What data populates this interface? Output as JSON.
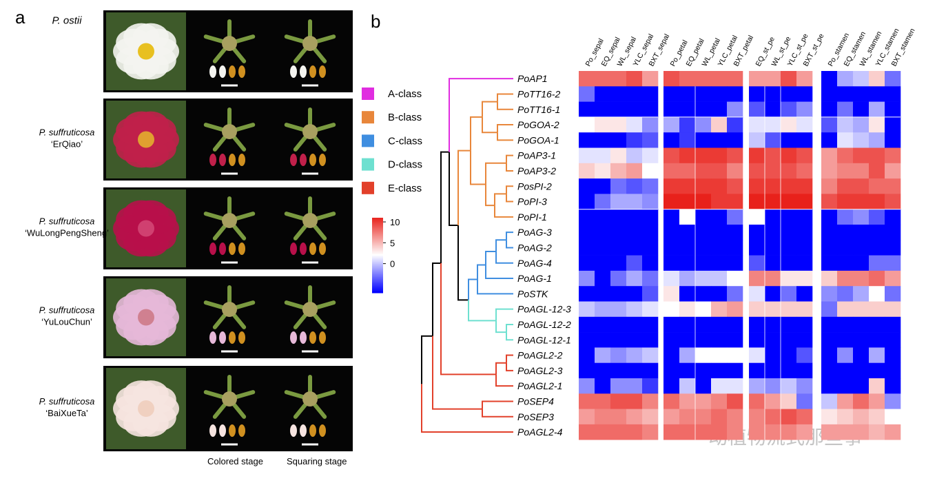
{
  "panel_a": {
    "label": "a",
    "rows": [
      {
        "species": "P. ostii"
      },
      {
        "species": "P. suffruticosa",
        "cultivar": "‘ErQiao’"
      },
      {
        "species": "P. suffruticosa",
        "cultivar": "‘WuLongPengSheng’"
      },
      {
        "species": "P. suffruticosa",
        "cultivar": "‘YuLouChun’"
      },
      {
        "species": "P. suffruticosa",
        "cultivar": "‘BaiXueTa’"
      }
    ],
    "stages": [
      "Colored stage",
      "Squaring stage"
    ]
  },
  "panel_b": {
    "label": "b",
    "column_groups": [
      [
        "Po_sepal",
        "EQ_sepal",
        "WL_sepal",
        "YLC_sepal",
        "BXT_sepal"
      ],
      [
        "Po_petal",
        "EQ_petal",
        "WL_petal",
        "YLC_petal",
        "BXT_petal"
      ],
      [
        "EQ_st_pe",
        "WL_st_pe",
        "YLC_st_pe",
        "BXT_st_pe"
      ],
      [
        "Po_stamen",
        "EQ_stamen",
        "WL_stamen",
        "YLC_stamen",
        "BXT_stamen"
      ]
    ],
    "colorbar": {
      "lim": [
        -7,
        11
      ],
      "ticks": [
        0,
        5,
        10
      ],
      "colors": [
        "#0000ff",
        "#ffffff",
        "#e8211b"
      ]
    },
    "classes": [
      {
        "name": "A-class",
        "color": "#e02de0",
        "genes": [
          {
            "name": "PoAP1",
            "values": [
              8,
              8,
              8,
              9,
              6,
              9,
              8,
              8,
              8,
              8,
              6,
              6,
              9,
              6,
              -7,
              -1,
              0,
              4,
              -3
            ]
          }
        ]
      },
      {
        "name": "B-class",
        "color": "#e8863a",
        "genes": [
          {
            "name": "PoTT16-2",
            "values": [
              -3,
              -7,
              -7,
              -7,
              -7,
              -7,
              -7,
              -7,
              -7,
              -7,
              -7,
              -7,
              -7,
              -7,
              -7,
              -7,
              -7,
              -7,
              -7
            ]
          },
          {
            "name": "PoTT16-1",
            "values": [
              -7,
              -7,
              -7,
              -7,
              -7,
              -7,
              -7,
              -7,
              -7,
              -2,
              -4,
              -7,
              -4,
              -2,
              -7,
              -3,
              -7,
              -1,
              -7
            ]
          },
          {
            "name": "PoGOA-2",
            "values": [
              2,
              3,
              3,
              1,
              -2,
              -1,
              -5,
              -2,
              4,
              -5,
              1,
              1,
              3,
              1,
              -4,
              0,
              -1,
              3,
              -7
            ]
          },
          {
            "name": "PoGOA-1",
            "values": [
              -7,
              -7,
              -7,
              -5,
              -4,
              -7,
              -5,
              -7,
              -7,
              -7,
              0,
              -4,
              -7,
              -7,
              -7,
              1,
              0,
              -1,
              -7
            ]
          },
          {
            "name": "PoAP3-1",
            "values": [
              1,
              1,
              3,
              0,
              1,
              9,
              10,
              10,
              10,
              9,
              10,
              9,
              10,
              9,
              6,
              8,
              9,
              9,
              8
            ]
          },
          {
            "name": "PoAP3-2",
            "values": [
              4,
              3,
              5,
              6,
              2,
              8,
              8,
              9,
              9,
              7,
              9,
              9,
              9,
              8,
              6,
              7,
              7,
              9,
              6
            ]
          },
          {
            "name": "PosPI-2",
            "values": [
              -7,
              -7,
              -3,
              -4,
              -3,
              10,
              10,
              10,
              10,
              9,
              10,
              10,
              10,
              10,
              7,
              9,
              9,
              8,
              8
            ]
          },
          {
            "name": "PoPI-3",
            "values": [
              -7,
              -3,
              -1,
              -1,
              -2,
              11,
              11,
              11,
              10,
              10,
              11,
              11,
              11,
              11,
              9,
              10,
              10,
              10,
              9
            ]
          },
          {
            "name": "PoPI-1",
            "values": [
              -7,
              -7,
              -7,
              -7,
              -7,
              -7,
              2,
              -7,
              -7,
              -3,
              2,
              -7,
              -7,
              -7,
              -7,
              -3,
              -2,
              -4,
              -7
            ]
          }
        ]
      },
      {
        "name": "C-class",
        "color": "#3f8ee0",
        "genes": [
          {
            "name": "PoAG-3",
            "values": [
              -7,
              -7,
              -7,
              -7,
              -7,
              -7,
              -7,
              -7,
              -7,
              -7,
              -7,
              -7,
              -7,
              -7,
              -7,
              -7,
              -7,
              -7,
              -7
            ]
          },
          {
            "name": "PoAG-2",
            "values": [
              -7,
              -7,
              -7,
              -7,
              -7,
              -7,
              -7,
              -7,
              -7,
              -7,
              -7,
              -7,
              -7,
              -7,
              -7,
              -7,
              -7,
              -7,
              -7
            ]
          },
          {
            "name": "PoAG-4",
            "values": [
              -7,
              -7,
              -7,
              -4,
              -7,
              -7,
              -7,
              -7,
              -7,
              -7,
              -4,
              -7,
              -7,
              -7,
              -7,
              -7,
              -7,
              -3,
              -3
            ]
          },
          {
            "name": "PoAG-1",
            "values": [
              -2,
              -7,
              -3,
              -1,
              -3,
              1,
              -1,
              0,
              0,
              2,
              7,
              7,
              3,
              3,
              4,
              7,
              7,
              8,
              6
            ]
          },
          {
            "name": "PoSTK",
            "values": [
              -7,
              -7,
              -7,
              -7,
              -4,
              3,
              -7,
              -7,
              -7,
              -3,
              1,
              -7,
              -3,
              -7,
              -2,
              -3,
              -1,
              2,
              -3
            ]
          }
        ]
      },
      {
        "name": "D-class",
        "color": "#6ee0d0",
        "genes": [
          {
            "name": "PoAGL-12-3",
            "values": [
              0,
              -1,
              -1,
              0,
              1,
              2,
              3,
              2,
              5,
              6,
              4,
              4,
              4,
              4,
              -3,
              4,
              4,
              4,
              4
            ]
          },
          {
            "name": "PoAGL-12-2",
            "values": [
              -7,
              -7,
              -7,
              -7,
              -7,
              -7,
              -7,
              -7,
              -7,
              -7,
              -7,
              -7,
              -7,
              -7,
              -7,
              -7,
              -7,
              -7,
              -7
            ]
          },
          {
            "name": "PoAGL-12-1",
            "values": [
              -7,
              -7,
              -7,
              -7,
              -7,
              -7,
              -7,
              -7,
              -7,
              -7,
              -7,
              -7,
              -7,
              -7,
              -7,
              -7,
              -7,
              -7,
              -7
            ]
          }
        ]
      },
      {
        "name": "E-class",
        "color": "#e2402a",
        "genes": [
          {
            "name": "PoAGL2-2",
            "values": [
              -7,
              -1,
              -2,
              -1,
              0,
              -7,
              -1,
              2,
              2,
              2,
              1,
              -7,
              -7,
              -4,
              -7,
              -2,
              -7,
              -1,
              -7
            ]
          },
          {
            "name": "PoAGL2-3",
            "values": [
              -7,
              -7,
              -7,
              -7,
              -7,
              -7,
              -7,
              -7,
              -7,
              -7,
              -7,
              -7,
              -7,
              -7,
              -7,
              -7,
              -7,
              -7,
              -7
            ]
          },
          {
            "name": "PoAGL2-1",
            "values": [
              -2,
              -7,
              -2,
              -2,
              -5,
              -7,
              0,
              -7,
              1,
              1,
              -1,
              -2,
              0,
              -2,
              -7,
              -7,
              -7,
              4,
              -7
            ]
          },
          {
            "name": "PoSEP4",
            "values": [
              8,
              8,
              9,
              9,
              7,
              8,
              6,
              6,
              7,
              9,
              8,
              6,
              4,
              -3,
              0,
              6,
              8,
              6,
              -2
            ]
          },
          {
            "name": "PoSEP3",
            "values": [
              6,
              7,
              7,
              6,
              5,
              6,
              7,
              7,
              8,
              7,
              7,
              8,
              9,
              8,
              3,
              4,
              5,
              4,
              2
            ]
          },
          {
            "name": "PoAGL2-4",
            "values": [
              8,
              8,
              8,
              8,
              7,
              8,
              8,
              8,
              8,
              7,
              7,
              7,
              7,
              6,
              6,
              6,
              6,
              5,
              6
            ]
          }
        ]
      }
    ]
  },
  "watermark": "动植物流式那些事"
}
